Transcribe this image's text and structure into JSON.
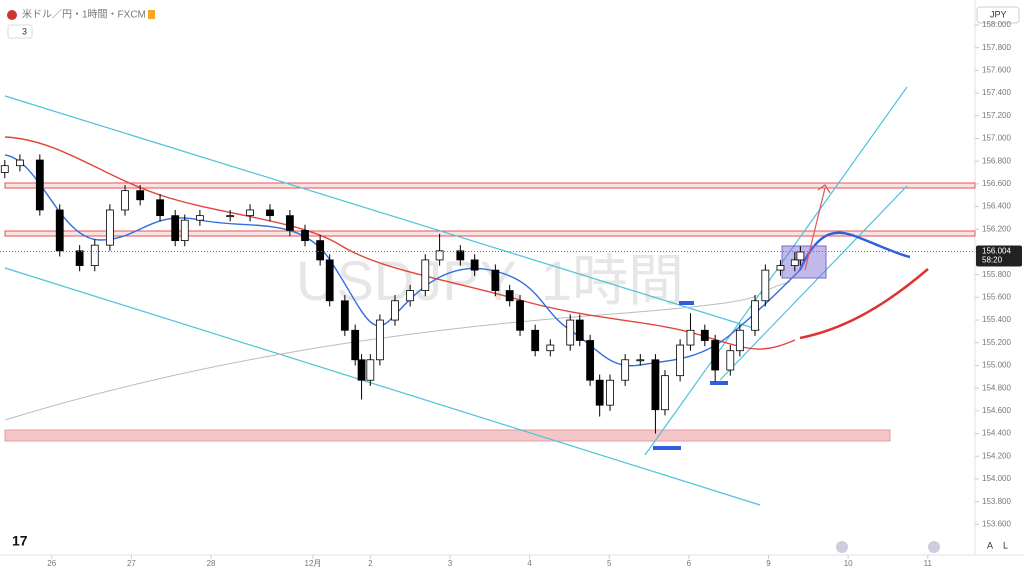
{
  "header": {
    "symbol": "米ドル／円・1時間・FXCM",
    "indicators": "3",
    "currency": "JPY"
  },
  "watermark": "USDJPY, 1時間",
  "chart_data": {
    "type": "candlestick",
    "x": [
      -0.59,
      -0.4,
      -0.15,
      0.1,
      0.35,
      0.54,
      0.73,
      0.92,
      1.11,
      1.36,
      1.55,
      1.67,
      1.86,
      2.24,
      2.49,
      2.74,
      2.99,
      3.18,
      3.37,
      3.49,
      3.68,
      3.81,
      3.89,
      4.0,
      4.12,
      4.31,
      4.5,
      4.69,
      4.87,
      5.13,
      5.31,
      5.57,
      5.75,
      5.88,
      6.07,
      6.26,
      6.51,
      6.63,
      6.76,
      6.88,
      7.01,
      7.2,
      7.39,
      7.58,
      7.7,
      7.89,
      8.02,
      8.2,
      8.33,
      8.52,
      8.64,
      8.83,
      8.96,
      9.15,
      9.33,
      9.4
    ],
    "open": [
      156.7,
      156.76,
      156.81,
      156.37,
      156.01,
      155.88,
      156.06,
      156.37,
      156.54,
      156.46,
      156.32,
      156.1,
      156.28,
      156.32,
      156.32,
      156.37,
      156.32,
      156.19,
      156.1,
      155.93,
      155.57,
      155.31,
      155.05,
      154.87,
      155.05,
      155.4,
      155.57,
      155.66,
      155.93,
      156.01,
      155.93,
      155.84,
      155.66,
      155.57,
      155.31,
      155.13,
      155.18,
      155.4,
      155.22,
      154.87,
      154.65,
      154.87,
      155.05,
      155.05,
      154.61,
      154.91,
      155.18,
      155.31,
      155.22,
      154.96,
      155.13,
      155.31,
      155.57,
      155.84,
      155.88,
      155.93
    ],
    "high": [
      156.81,
      156.86,
      156.86,
      156.42,
      156.06,
      156.11,
      156.42,
      156.59,
      156.59,
      156.51,
      156.37,
      156.33,
      156.37,
      156.37,
      156.42,
      156.42,
      156.37,
      156.24,
      156.15,
      155.98,
      155.62,
      155.36,
      155.1,
      155.1,
      155.45,
      155.62,
      155.71,
      155.98,
      156.16,
      156.06,
      155.98,
      155.89,
      155.71,
      155.62,
      155.36,
      155.23,
      155.45,
      155.45,
      155.27,
      154.92,
      154.92,
      155.1,
      155.1,
      155.1,
      154.96,
      155.23,
      155.46,
      155.36,
      155.27,
      155.18,
      155.36,
      155.62,
      155.89,
      155.93,
      156.0,
      156.05
    ],
    "low": [
      156.65,
      156.71,
      156.32,
      155.96,
      155.83,
      155.83,
      156.01,
      156.32,
      156.41,
      156.27,
      156.05,
      156.05,
      156.23,
      156.27,
      156.27,
      156.27,
      156.14,
      156.05,
      155.88,
      155.52,
      155.26,
      155.0,
      154.7,
      154.82,
      155.0,
      155.35,
      155.52,
      155.61,
      155.88,
      155.88,
      155.79,
      155.61,
      155.52,
      155.26,
      155.08,
      155.08,
      155.13,
      155.17,
      154.82,
      154.55,
      154.6,
      154.82,
      155.0,
      154.4,
      154.56,
      154.86,
      155.13,
      155.17,
      154.86,
      154.91,
      155.08,
      155.26,
      155.52,
      155.79,
      155.83,
      155.88
    ],
    "close": [
      156.76,
      156.81,
      156.37,
      156.01,
      155.88,
      156.06,
      156.37,
      156.54,
      156.46,
      156.32,
      156.1,
      156.28,
      156.32,
      156.32,
      156.37,
      156.32,
      156.19,
      156.1,
      155.93,
      155.57,
      155.31,
      155.05,
      154.87,
      155.05,
      155.4,
      155.57,
      155.66,
      155.93,
      156.01,
      155.93,
      155.84,
      155.66,
      155.57,
      155.31,
      155.13,
      155.18,
      155.4,
      155.22,
      154.87,
      154.65,
      154.87,
      155.05,
      155.05,
      154.61,
      154.91,
      155.18,
      155.31,
      155.22,
      154.96,
      155.13,
      155.31,
      155.57,
      155.84,
      155.88,
      155.93,
      156.0
    ],
    "up_color": "#ffffff",
    "down_color": "#000000",
    "xlim": [
      -0.65,
      11.53
    ],
    "xticks": [
      {
        "value": 0,
        "label": "26"
      },
      {
        "value": 1,
        "label": "27"
      },
      {
        "value": 2,
        "label": "28"
      },
      {
        "value": 3.28,
        "label": "12月"
      },
      {
        "value": 4,
        "label": "2"
      },
      {
        "value": 5,
        "label": "3"
      },
      {
        "value": 6,
        "label": "4"
      },
      {
        "value": 7,
        "label": "5"
      },
      {
        "value": 8,
        "label": "6"
      },
      {
        "value": 9,
        "label": "9"
      },
      {
        "value": 10,
        "label": "10"
      },
      {
        "value": 11,
        "label": "11"
      }
    ],
    "ylim": [
      153.33,
      158.22
    ],
    "yticks": [
      {
        "value": 153.6,
        "label": "153.600"
      },
      {
        "value": 153.8,
        "label": "153.800"
      },
      {
        "value": 154.0,
        "label": "154.000"
      },
      {
        "value": 154.2,
        "label": "154.200"
      },
      {
        "value": 154.4,
        "label": "154.400"
      },
      {
        "value": 154.6,
        "label": "154.600"
      },
      {
        "value": 154.8,
        "label": "154.800"
      },
      {
        "value": 155.0,
        "label": "155.000"
      },
      {
        "value": 155.2,
        "label": "155.200"
      },
      {
        "value": 155.4,
        "label": "155.400"
      },
      {
        "value": 155.6,
        "label": "155.600"
      },
      {
        "value": 155.8,
        "label": "155.800"
      },
      {
        "value": 156.0,
        "label": "156.000"
      },
      {
        "value": 156.2,
        "label": "156.200"
      },
      {
        "value": 156.4,
        "label": "156.400"
      },
      {
        "value": 156.6,
        "label": "156.600"
      },
      {
        "value": 156.8,
        "label": "156.800"
      },
      {
        "value": 157.0,
        "label": "157.000"
      },
      {
        "value": 157.2,
        "label": "157.200"
      },
      {
        "value": 157.4,
        "label": "157.400"
      },
      {
        "value": 157.6,
        "label": "157.600"
      },
      {
        "value": 157.8,
        "label": "157.800"
      },
      {
        "value": 158.0,
        "label": "158.000"
      }
    ],
    "last_price": {
      "value": 156.004,
      "label": "156.004",
      "countdown": "58:20"
    }
  },
  "footer": {
    "auto": "A",
    "log": "L"
  }
}
